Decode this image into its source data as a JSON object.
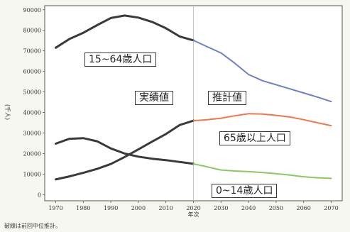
{
  "chart_data": {
    "type": "line",
    "xlabel": "年次",
    "ylabel": "(千人)",
    "x_ticks": [
      1970,
      1980,
      1990,
      2000,
      2010,
      2020,
      2030,
      2040,
      2050,
      2060,
      2070
    ],
    "y_ticks": [
      0,
      10000,
      20000,
      30000,
      40000,
      50000,
      60000,
      70000,
      80000,
      90000
    ],
    "xlim": [
      1966,
      2074
    ],
    "ylim": [
      -3000,
      92000
    ],
    "projection_start": 2020,
    "period_labels": {
      "actual": "実績値",
      "projected": "推計値"
    },
    "series": [
      {
        "name": "15~64歳人口",
        "color_actual": "#3a3a3a",
        "color_projected": "#6b80c8",
        "x": [
          1970,
          1975,
          1980,
          1985,
          1990,
          1995,
          2000,
          2005,
          2010,
          2015,
          2020,
          2025,
          2030,
          2035,
          2040,
          2045,
          2050,
          2055,
          2060,
          2065,
          2070
        ],
        "values": [
          71500,
          75800,
          78800,
          82500,
          86000,
          87200,
          86200,
          84100,
          81000,
          77000,
          75100,
          72000,
          69000,
          64000,
          58500,
          55500,
          53500,
          51500,
          49500,
          47500,
          45300
        ]
      },
      {
        "name": "65歳以上人口",
        "color_actual": "#3a3a3a",
        "color_projected": "#f07850",
        "x": [
          1970,
          1975,
          1980,
          1985,
          1990,
          1995,
          2000,
          2005,
          2010,
          2015,
          2020,
          2025,
          2030,
          2035,
          2040,
          2045,
          2050,
          2055,
          2060,
          2065,
          2070
        ],
        "values": [
          7400,
          8900,
          10600,
          12500,
          14900,
          18300,
          22000,
          25800,
          29500,
          33900,
          36000,
          36500,
          37200,
          38400,
          39400,
          39200,
          38600,
          37800,
          36500,
          35000,
          33600
        ]
      },
      {
        "name": "0~14歳人口",
        "color_actual": "#3a3a3a",
        "color_projected": "#8cc764",
        "x": [
          1970,
          1975,
          1980,
          1985,
          1990,
          1995,
          2000,
          2005,
          2010,
          2015,
          2020,
          2025,
          2030,
          2035,
          2040,
          2045,
          2050,
          2055,
          2060,
          2065,
          2070
        ],
        "values": [
          24800,
          27200,
          27500,
          26000,
          22500,
          20000,
          18500,
          17500,
          16800,
          15900,
          15000,
          13500,
          12000,
          11500,
          11200,
          10800,
          10200,
          9500,
          8700,
          8200,
          7900
        ]
      }
    ],
    "series_labels": [
      "15~64歳人口",
      "65歳以上人口",
      "0~14歳人口"
    ],
    "grid": false,
    "note": "破線は前回中位推計。"
  }
}
